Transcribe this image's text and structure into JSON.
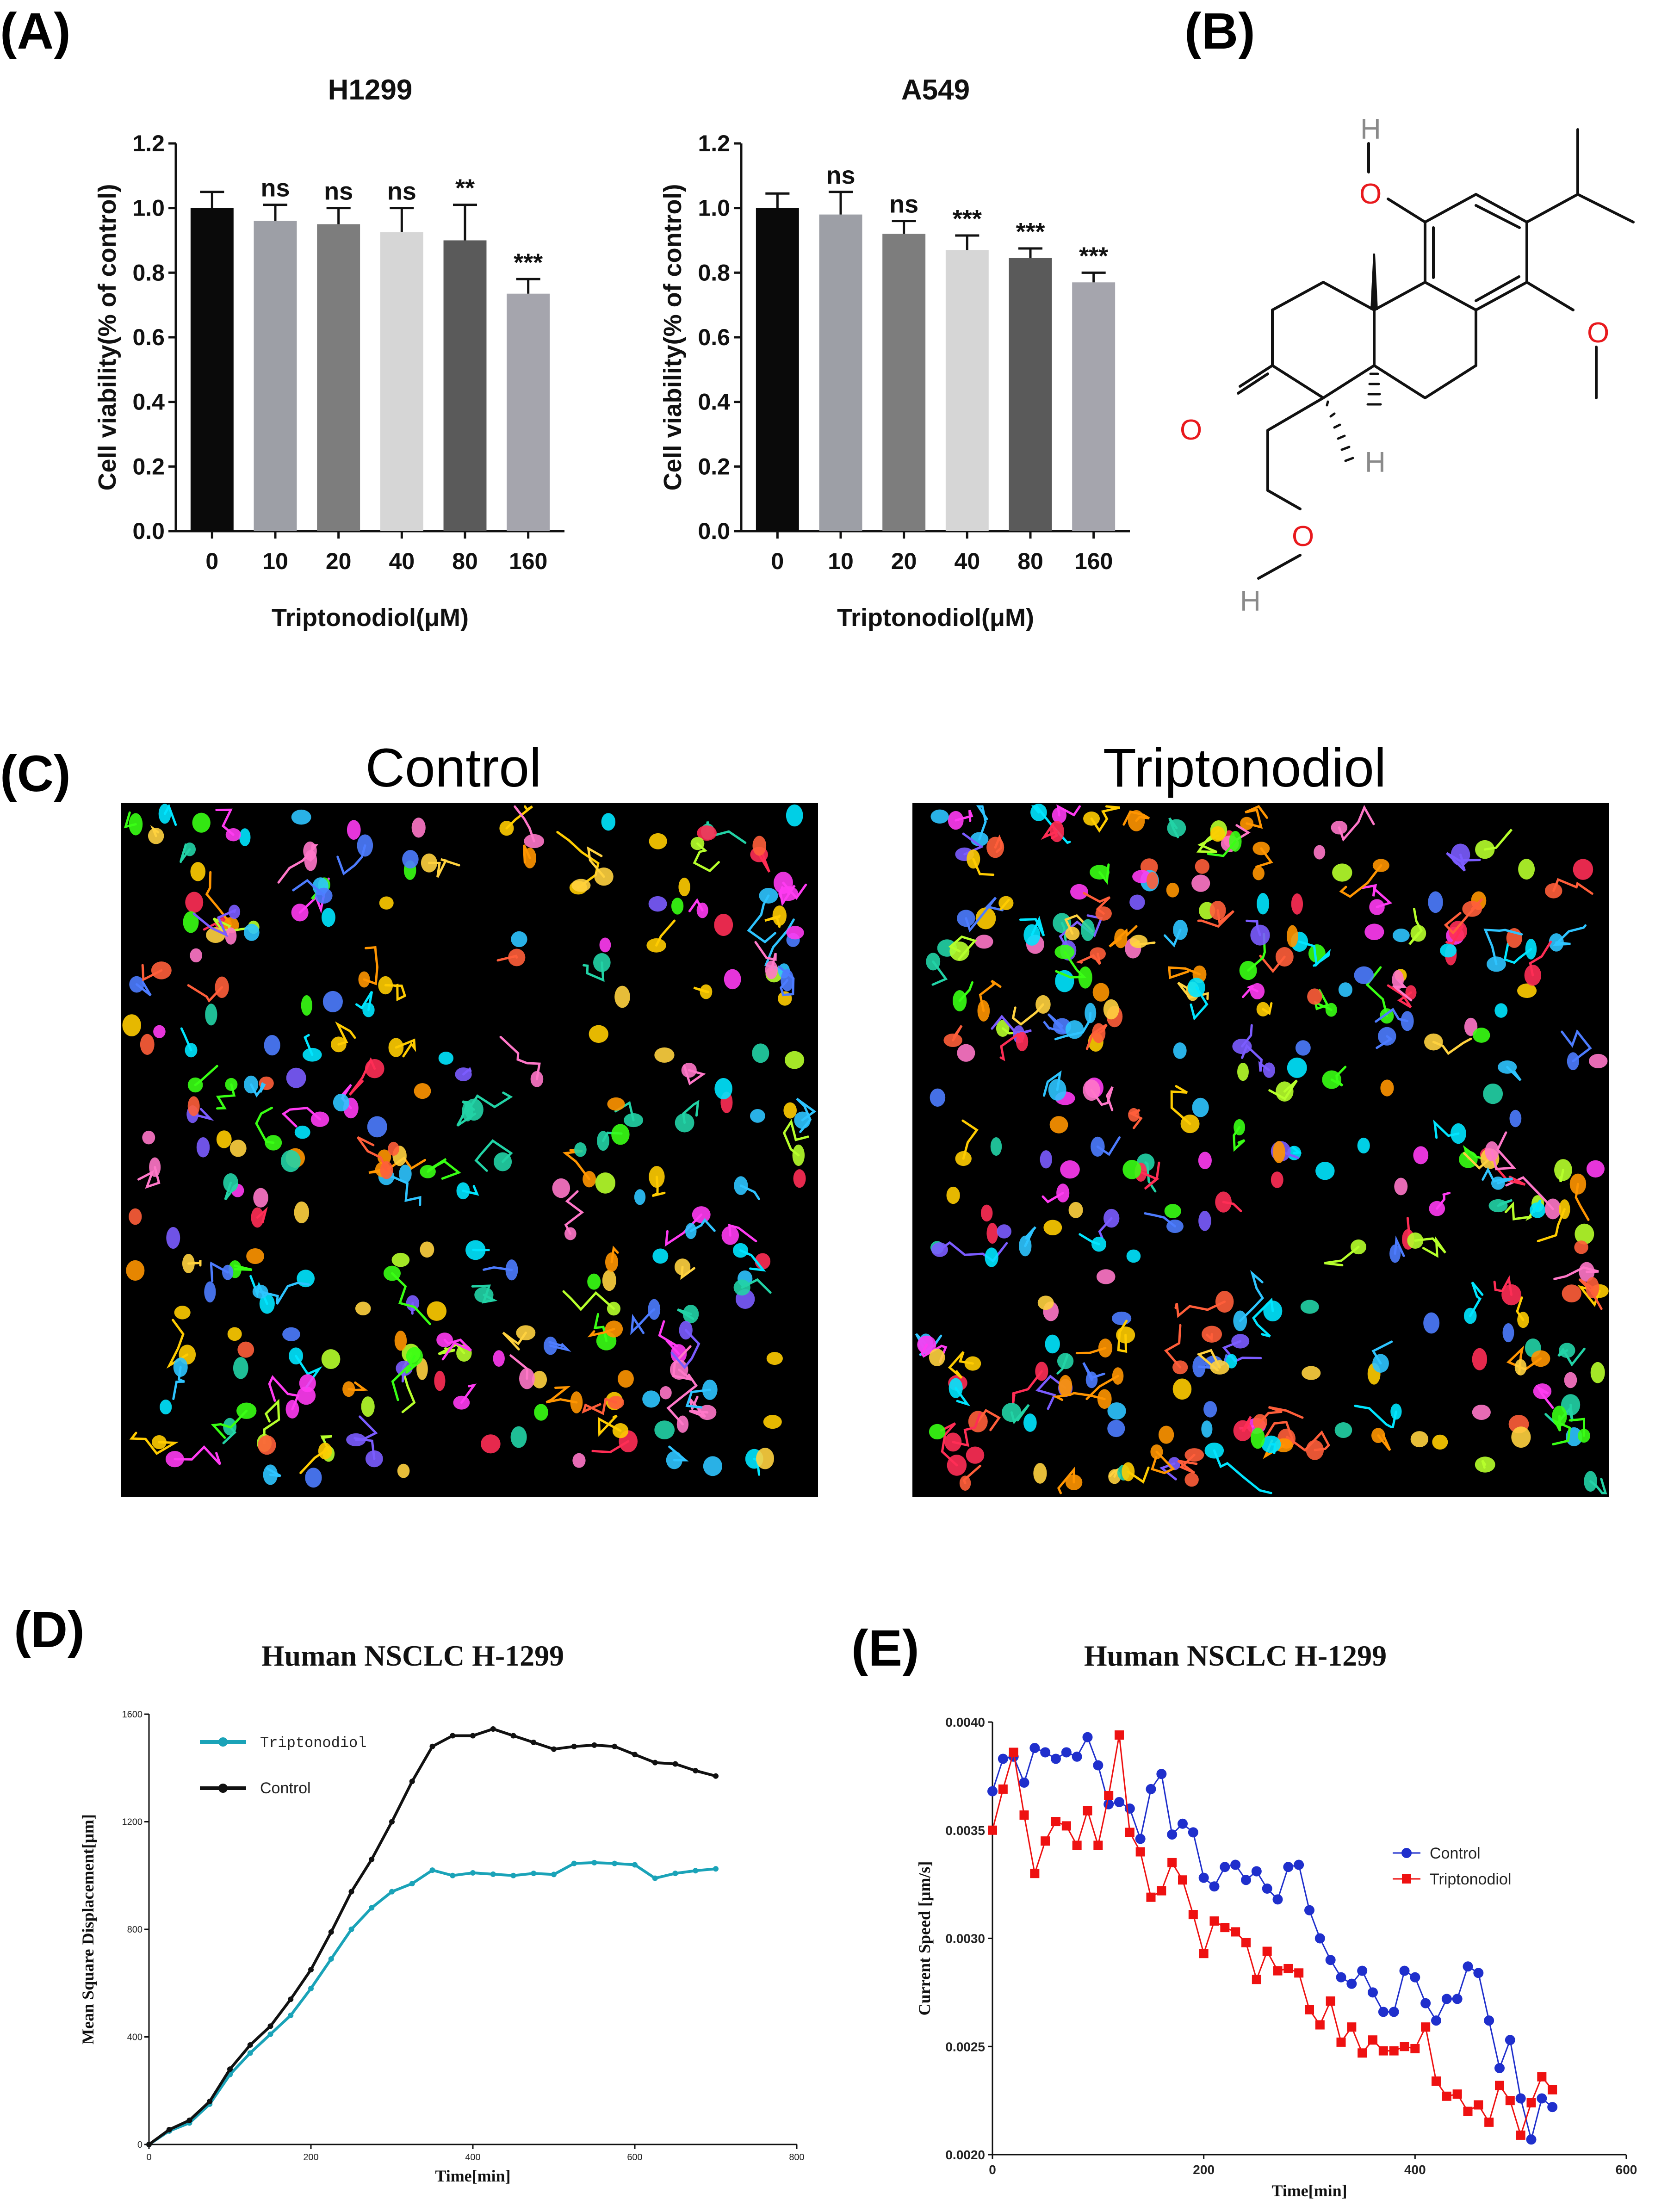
{
  "panels": {
    "a_label": "(A)",
    "b_label": "(B)",
    "c_label": "(C)",
    "d_label": "(D)",
    "e_label": "(E)"
  },
  "colors": {
    "bars": [
      "#0a0a0a",
      "#9d9fa6",
      "#7d7d7d",
      "#d6d6d6",
      "#5a5a5a",
      "#a5a5ad"
    ],
    "triptonodiol_teal": "#1aa3b8",
    "control_black": "#111111",
    "control_blue": "#1f2fcc",
    "triptonodiol_red": "#ee1111",
    "oxygen_red": "#e8191d",
    "hydrogen_grey": "#8a8a8a"
  },
  "structure": {
    "atoms": {
      "o1": "O",
      "o2": "O",
      "o3": "O",
      "o4": "O",
      "h1": "H",
      "h2": "H",
      "h3": "H"
    }
  },
  "microscopy": {
    "control_title": "Control",
    "triptonodiol_title": "Triptonodiol"
  },
  "chart_data": [
    {
      "id": "H1299",
      "type": "bar",
      "title": "H1299",
      "xlabel": "Triptonodiol(μM)",
      "ylabel": "Cell viability(% of control)",
      "categories": [
        "0",
        "10",
        "20",
        "40",
        "80",
        "160"
      ],
      "values": [
        1.0,
        0.96,
        0.95,
        0.925,
        0.9,
        0.735
      ],
      "errors": [
        0.05,
        0.05,
        0.05,
        0.075,
        0.11,
        0.045
      ],
      "significance": [
        "",
        "ns",
        "ns",
        "ns",
        "**",
        "***"
      ],
      "ylim": [
        0,
        1.2
      ],
      "yticks": [
        "0.0",
        "0.2",
        "0.4",
        "0.6",
        "0.8",
        "1.0",
        "1.2"
      ]
    },
    {
      "id": "A549",
      "type": "bar",
      "title": "A549",
      "xlabel": "Triptonodiol(μM)",
      "ylabel": "Cell viability(% of control)",
      "categories": [
        "0",
        "10",
        "20",
        "40",
        "80",
        "160"
      ],
      "values": [
        1.0,
        0.98,
        0.92,
        0.87,
        0.845,
        0.77
      ],
      "errors": [
        0.045,
        0.07,
        0.04,
        0.045,
        0.03,
        0.03
      ],
      "significance": [
        "",
        "ns",
        "ns",
        "***",
        "***",
        "***"
      ],
      "ylim": [
        0,
        1.2
      ],
      "yticks": [
        "0.0",
        "0.2",
        "0.4",
        "0.6",
        "0.8",
        "1.0",
        "1.2"
      ]
    },
    {
      "id": "MSD",
      "type": "line",
      "title": "Human  NSCLC  H-1299",
      "xlabel": "Time[min]",
      "ylabel": "Mean Square Displacement[μm]",
      "xlim": [
        0,
        800
      ],
      "ylim": [
        0,
        1600
      ],
      "xticks": [
        "0",
        "200",
        "400",
        "600",
        "800"
      ],
      "yticks": [
        "0",
        "400",
        "800",
        "1200",
        "1600"
      ],
      "x": [
        0,
        25,
        50,
        75,
        100,
        125,
        150,
        175,
        200,
        225,
        250,
        275,
        300,
        325,
        350,
        375,
        400,
        425,
        450,
        475,
        500,
        525,
        550,
        575,
        600,
        625,
        650,
        675,
        700
      ],
      "series": [
        {
          "name": "Triptonodiol",
          "values": [
            0,
            50,
            80,
            150,
            260,
            340,
            410,
            480,
            580,
            690,
            800,
            880,
            940,
            970,
            1020,
            1000,
            1010,
            1005,
            1000,
            1008,
            1004,
            1045,
            1048,
            1045,
            1040,
            990,
            1008,
            1018,
            1025
          ]
        },
        {
          "name": "Control",
          "values": [
            0,
            55,
            90,
            160,
            280,
            370,
            440,
            540,
            650,
            790,
            940,
            1060,
            1200,
            1350,
            1480,
            1520,
            1520,
            1545,
            1520,
            1495,
            1470,
            1480,
            1485,
            1480,
            1450,
            1420,
            1415,
            1390,
            1370
          ]
        }
      ],
      "legend": "top-left"
    },
    {
      "id": "Speed",
      "type": "line",
      "title": "Human  NSCLC  H-1299",
      "xlabel": "Time[min]",
      "ylabel": "Current Speed [μm/s]",
      "xlim": [
        0,
        600
      ],
      "ylim": [
        0.002,
        0.004
      ],
      "xticks": [
        "0",
        "200",
        "400",
        "600"
      ],
      "yticks": [
        "0.0020",
        "0.0025",
        "0.0030",
        "0.0035",
        "0.0040"
      ],
      "x": [
        0,
        10,
        20,
        30,
        40,
        50,
        60,
        70,
        80,
        90,
        100,
        110,
        120,
        130,
        140,
        150,
        160,
        170,
        180,
        190,
        200,
        210,
        220,
        230,
        240,
        250,
        260,
        270,
        280,
        290,
        300,
        310,
        320,
        330,
        340,
        350,
        360,
        370,
        380,
        390,
        400,
        410,
        420,
        430,
        440,
        450,
        460,
        470,
        480,
        490,
        500,
        510,
        520,
        530
      ],
      "series": [
        {
          "name": "Control",
          "values": [
            0.00368,
            0.00383,
            0.00384,
            0.00372,
            0.00388,
            0.00386,
            0.00383,
            0.00386,
            0.00384,
            0.00393,
            0.0038,
            0.00362,
            0.00363,
            0.0036,
            0.00346,
            0.00369,
            0.00376,
            0.00348,
            0.00353,
            0.00349,
            0.00328,
            0.00324,
            0.00333,
            0.00334,
            0.00327,
            0.00331,
            0.00323,
            0.00318,
            0.00333,
            0.00334,
            0.00313,
            0.003,
            0.0029,
            0.00282,
            0.00279,
            0.00285,
            0.00275,
            0.00266,
            0.00266,
            0.00285,
            0.00282,
            0.0027,
            0.00262,
            0.00272,
            0.00272,
            0.00287,
            0.00284,
            0.00262,
            0.0024,
            0.00253,
            0.00226,
            0.00207,
            0.00226,
            0.00222
          ]
        },
        {
          "name": "Triptonodiol",
          "values": [
            0.0035,
            0.00369,
            0.00386,
            0.00357,
            0.0033,
            0.00345,
            0.00354,
            0.00352,
            0.00343,
            0.00359,
            0.00343,
            0.00366,
            0.00394,
            0.00349,
            0.0034,
            0.00319,
            0.00322,
            0.00335,
            0.00327,
            0.00311,
            0.00293,
            0.00308,
            0.00305,
            0.00303,
            0.00298,
            0.00281,
            0.00294,
            0.00285,
            0.00286,
            0.00284,
            0.00267,
            0.0026,
            0.00271,
            0.00252,
            0.00259,
            0.00247,
            0.00253,
            0.00248,
            0.00248,
            0.0025,
            0.00249,
            0.00259,
            0.00234,
            0.00227,
            0.00228,
            0.0022,
            0.00223,
            0.00215,
            0.00232,
            0.00225,
            0.00209,
            0.00224,
            0.00236,
            0.0023
          ]
        }
      ],
      "legend": "right"
    }
  ]
}
